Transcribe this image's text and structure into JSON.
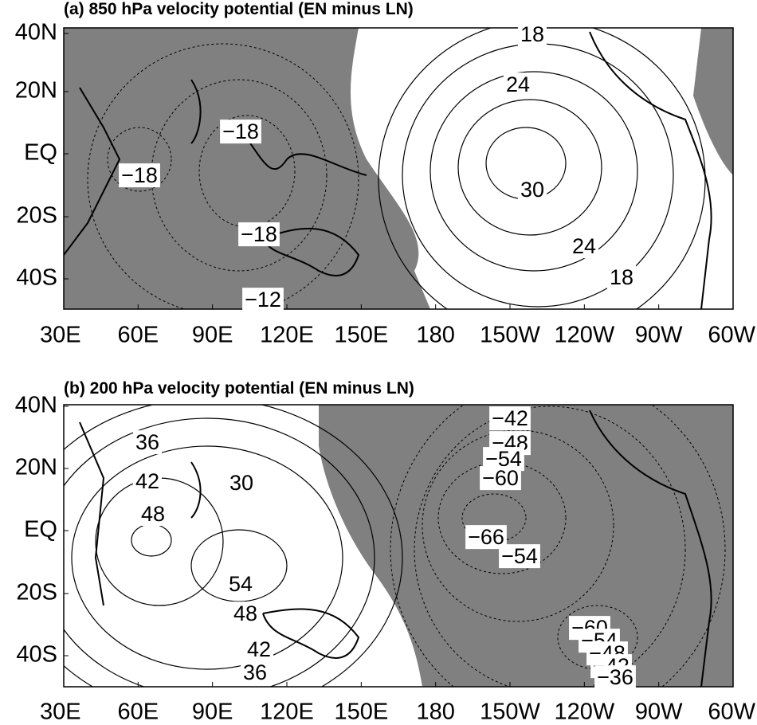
{
  "panels": [
    {
      "title": "(a) 850 hPa velocity potential (EN minus LN)",
      "lat_labels": [
        "40N",
        "20N",
        "EQ",
        "20S",
        "40S"
      ],
      "lon_labels": [
        "30E",
        "60E",
        "90E",
        "120E",
        "150E",
        "180",
        "150W",
        "120W",
        "90W",
        "60W"
      ],
      "contour_labels": [
        "18",
        "24",
        "−18",
        "−18",
        "30",
        "−18",
        "24",
        "18",
        "−12"
      ]
    },
    {
      "title": "(b) 200 hPa velocity potential (EN minus LN)",
      "lat_labels": [
        "40N",
        "20N",
        "EQ",
        "20S",
        "40S"
      ],
      "lon_labels": [
        "30E",
        "60E",
        "90E",
        "120E",
        "150E",
        "180",
        "150W",
        "120W",
        "90W",
        "60W"
      ],
      "contour_labels": [
        "36",
        "42",
        "48",
        "30",
        "54",
        "48",
        "42",
        "36",
        "−42",
        "−48",
        "−54",
        "−60",
        "−66",
        "−54",
        "−60",
        "−54",
        "−48",
        "−42",
        "−36"
      ]
    }
  ]
}
